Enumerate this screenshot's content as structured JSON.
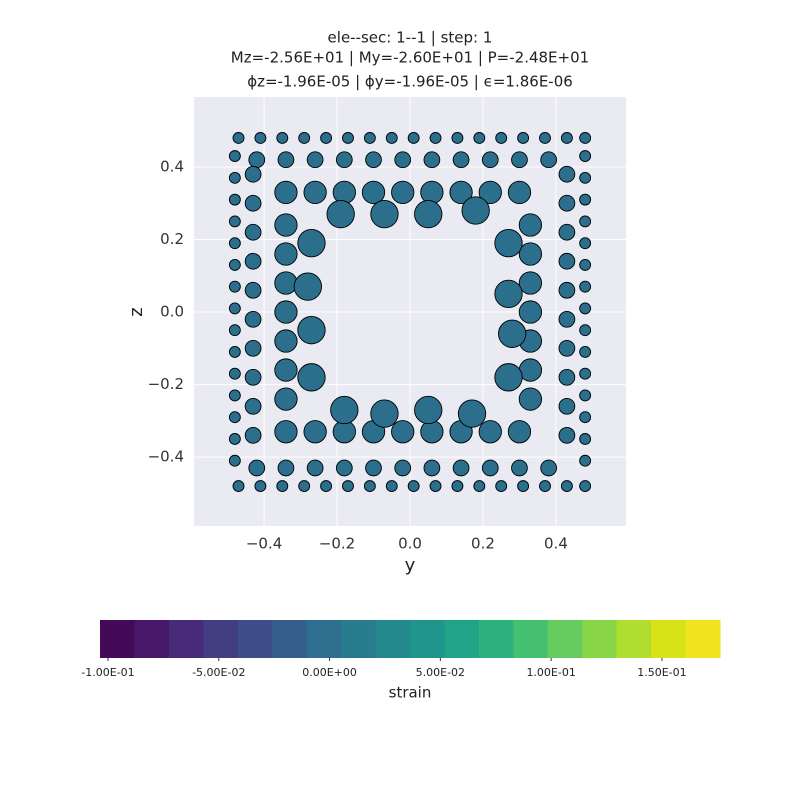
{
  "chart_data": {
    "type": "scatter",
    "title": "ele--sec: 1--1 | step: 1",
    "subtitle": "Mz=-2.56E+01 | My=-2.60E+01 | P=-2.48E+01",
    "subtitle2": "ϕz=-1.96E-05 | ϕy=-1.96E-05 | ϵ=1.86E-06",
    "x_label": "y",
    "y_label": "z",
    "xlim": [
      -0.592,
      0.592
    ],
    "ylim": [
      -0.59,
      0.593
    ],
    "xticks": [
      {
        "value": -0.4,
        "label": "−0.4"
      },
      {
        "value": -0.2,
        "label": "−0.2"
      },
      {
        "value": 0,
        "label": "0.0"
      },
      0.2,
      0.4
    ],
    "yticks": [
      {
        "value": -0.4,
        "label": "−0.4"
      },
      {
        "value": -0.2,
        "label": "−0.2"
      },
      {
        "value": 0,
        "label": "0.0"
      },
      0.2,
      0.4
    ],
    "grid": true,
    "series": [
      {
        "color": "#2b6f8d",
        "x": [
          -0.47,
          -0.41,
          -0.35,
          -0.29,
          -0.23,
          -0.17,
          -0.11,
          -0.05,
          0.01,
          0.07,
          0.13,
          0.19,
          0.25,
          0.31,
          0.37,
          0.43,
          0.48,
          -0.47,
          -0.41,
          -0.35,
          -0.29,
          -0.23,
          -0.17,
          -0.11,
          -0.05,
          0.01,
          0.07,
          0.13,
          0.19,
          0.25,
          0.31,
          0.37,
          0.43,
          0.48,
          -0.48,
          -0.48,
          -0.48,
          -0.48,
          -0.48,
          -0.48,
          -0.48,
          -0.48,
          -0.48,
          -0.48,
          -0.48,
          -0.48,
          -0.48,
          -0.48,
          -0.48,
          0.48,
          0.48,
          0.48,
          0.48,
          0.48,
          0.48,
          0.48,
          0.48,
          0.48,
          0.48,
          0.48,
          0.48,
          0.48,
          0.48,
          0.48,
          -0.42,
          -0.34,
          -0.26,
          -0.18,
          -0.1,
          -0.02,
          0.06,
          0.14,
          0.22,
          0.3,
          0.38,
          -0.42,
          -0.34,
          -0.26,
          -0.18,
          -0.1,
          -0.02,
          0.06,
          0.14,
          0.22,
          0.3,
          0.38,
          -0.43,
          -0.43,
          -0.43,
          -0.43,
          -0.43,
          -0.43,
          -0.43,
          -0.43,
          -0.43,
          -0.43,
          0.43,
          0.43,
          0.43,
          0.43,
          0.43,
          0.43,
          0.43,
          0.43,
          0.43,
          0.43,
          -0.34,
          -0.26,
          -0.18,
          -0.1,
          -0.02,
          0.06,
          0.14,
          0.22,
          0.3,
          -0.34,
          -0.26,
          -0.18,
          -0.1,
          -0.02,
          0.06,
          0.14,
          0.22,
          0.3,
          -0.34,
          -0.34,
          -0.34,
          -0.34,
          -0.34,
          -0.34,
          -0.34,
          0.33,
          0.33,
          0.33,
          0.33,
          0.33,
          0.33,
          0.33,
          -0.19,
          -0.07,
          0.05,
          0.18,
          -0.18,
          -0.07,
          0.05,
          0.17,
          -0.27,
          -0.27,
          0.27,
          0.27,
          -0.28,
          0.27,
          -0.27,
          0.28
        ],
        "values": [
          0.48,
          0.48,
          0.48,
          0.48,
          0.48,
          0.48,
          0.48,
          0.48,
          0.48,
          0.48,
          0.48,
          0.48,
          0.48,
          0.48,
          0.48,
          0.48,
          0.48,
          -0.48,
          -0.48,
          -0.48,
          -0.48,
          -0.48,
          -0.48,
          -0.48,
          -0.48,
          -0.48,
          -0.48,
          -0.48,
          -0.48,
          -0.48,
          -0.48,
          -0.48,
          -0.48,
          -0.48,
          -0.41,
          -0.35,
          -0.29,
          -0.23,
          -0.17,
          -0.11,
          -0.05,
          0.01,
          0.07,
          0.13,
          0.19,
          0.25,
          0.31,
          0.37,
          0.43,
          -0.41,
          -0.35,
          -0.29,
          -0.23,
          -0.17,
          -0.11,
          -0.05,
          0.01,
          0.07,
          0.13,
          0.19,
          0.25,
          0.31,
          0.37,
          0.43,
          0.42,
          0.42,
          0.42,
          0.42,
          0.42,
          0.42,
          0.42,
          0.42,
          0.42,
          0.42,
          0.42,
          -0.43,
          -0.43,
          -0.43,
          -0.43,
          -0.43,
          -0.43,
          -0.43,
          -0.43,
          -0.43,
          -0.43,
          -0.43,
          -0.34,
          -0.26,
          -0.18,
          -0.1,
          -0.02,
          0.06,
          0.14,
          0.22,
          0.3,
          0.38,
          -0.34,
          -0.26,
          -0.18,
          -0.1,
          -0.02,
          0.06,
          0.14,
          0.22,
          0.3,
          0.38,
          0.33,
          0.33,
          0.33,
          0.33,
          0.33,
          0.33,
          0.33,
          0.33,
          0.33,
          -0.33,
          -0.33,
          -0.33,
          -0.33,
          -0.33,
          -0.33,
          -0.33,
          -0.33,
          -0.33,
          -0.24,
          -0.16,
          -0.08,
          0,
          0.08,
          0.16,
          0.24,
          -0.24,
          -0.16,
          -0.08,
          0,
          0.08,
          0.16,
          0.24,
          0.27,
          0.27,
          0.27,
          0.28,
          -0.27,
          -0.28,
          -0.27,
          -0.28,
          0.19,
          -0.18,
          0.19,
          -0.18,
          0.07,
          0.05,
          -0.05,
          -0.06
        ],
        "sizes": [
          120,
          120,
          120,
          120,
          120,
          120,
          120,
          120,
          120,
          120,
          120,
          120,
          120,
          120,
          120,
          120,
          120,
          120,
          120,
          120,
          120,
          120,
          120,
          120,
          120,
          120,
          120,
          120,
          120,
          120,
          120,
          120,
          120,
          120,
          120,
          120,
          120,
          120,
          120,
          120,
          120,
          120,
          120,
          120,
          120,
          120,
          120,
          120,
          120,
          120,
          120,
          120,
          120,
          120,
          120,
          120,
          120,
          120,
          120,
          120,
          120,
          120,
          120,
          120,
          250,
          250,
          250,
          250,
          250,
          250,
          250,
          250,
          250,
          250,
          250,
          250,
          250,
          250,
          250,
          250,
          250,
          250,
          250,
          250,
          250,
          250,
          250,
          250,
          250,
          250,
          250,
          250,
          250,
          250,
          250,
          250,
          250,
          250,
          250,
          250,
          250,
          250,
          250,
          250,
          250,
          250,
          500,
          500,
          500,
          500,
          500,
          500,
          500,
          500,
          500,
          500,
          500,
          500,
          500,
          500,
          500,
          500,
          500,
          500,
          500,
          500,
          500,
          500,
          500,
          500,
          500,
          500,
          500,
          500,
          500,
          500,
          500,
          500,
          750,
          750,
          750,
          750,
          750,
          750,
          750,
          750,
          750,
          750,
          750,
          750,
          750,
          750,
          750,
          750
        ]
      }
    ],
    "colorbar": {
      "label": "strain",
      "clim": [
        -0.1036,
        0.1762
      ],
      "ticks": [
        {
          "value": -0.1,
          "label": "-1.00E-01"
        },
        {
          "value": -0.05,
          "label": "-5.00E-02"
        },
        {
          "value": 0,
          "label": "0.00E+00"
        },
        {
          "value": 0.05,
          "label": "5.00E-02"
        },
        {
          "value": 0.1,
          "label": "1.00E-01"
        },
        {
          "value": 0.15,
          "label": "1.50E-01"
        }
      ],
      "colors": [
        "#450a57",
        "#48186a",
        "#472a7a",
        "#433d84",
        "#3d4e8a",
        "#355e8d",
        "#2e6e8e",
        "#297b8e",
        "#23898e",
        "#1f958b",
        "#20a386",
        "#2db27d",
        "#45bf70",
        "#65cb5e",
        "#89d548",
        "#b0dd2f",
        "#d8e219",
        "#f1e51d"
      ]
    }
  }
}
